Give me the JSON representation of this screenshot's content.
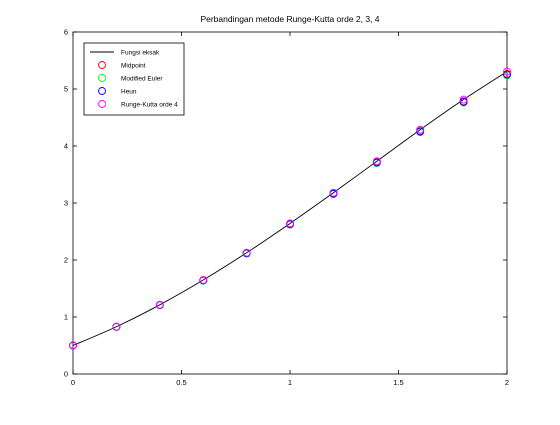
{
  "chart_data": {
    "type": "line",
    "title": "Perbandingan metode Runge-Kutta orde 2, 3, 4",
    "xlabel": "",
    "ylabel": "",
    "xlim": [
      0,
      2
    ],
    "ylim": [
      0,
      6
    ],
    "xticks": [
      0,
      0.5,
      1,
      1.5,
      2
    ],
    "xtick_labels": [
      "0",
      "0.5",
      "1",
      "1.5",
      "2"
    ],
    "yticks": [
      0,
      1,
      2,
      3,
      4,
      5,
      6
    ],
    "ytick_labels": [
      "0",
      "1",
      "2",
      "3",
      "4",
      "5",
      "6"
    ],
    "grid": false,
    "legend_position": "top-left",
    "exact": {
      "name": "Fungsi eksak",
      "color": "#000000",
      "x": [
        0,
        0.2,
        0.4,
        0.6,
        0.8,
        1.0,
        1.2,
        1.4,
        1.6,
        1.8,
        2.0
      ],
      "y": [
        0.5,
        0.829,
        1.214,
        1.649,
        2.127,
        2.641,
        3.179,
        3.732,
        4.285,
        4.815,
        5.306
      ]
    },
    "series": [
      {
        "name": "Midpoint",
        "color": "#ff0000",
        "marker": "circle",
        "x": [
          0,
          0.2,
          0.4,
          0.6,
          0.8,
          1.0,
          1.2,
          1.4,
          1.6,
          1.8,
          2.0
        ],
        "y": [
          0.5,
          0.828,
          1.211,
          1.644,
          2.121,
          2.633,
          3.169,
          3.718,
          4.262,
          4.784,
          5.264
        ]
      },
      {
        "name": "Modified Euler",
        "color": "#00ff00",
        "marker": "circle",
        "x": [
          0,
          0.2,
          0.4,
          0.6,
          0.8,
          1.0,
          1.2,
          1.4,
          1.6,
          1.8,
          2.0
        ],
        "y": [
          0.5,
          0.826,
          1.207,
          1.638,
          2.113,
          2.622,
          3.156,
          3.703,
          4.245,
          4.764,
          5.242
        ]
      },
      {
        "name": "Heun",
        "color": "#0000ff",
        "marker": "circle",
        "x": [
          0,
          0.2,
          0.4,
          0.6,
          0.8,
          1.0,
          1.2,
          1.4,
          1.6,
          1.8,
          2.0
        ],
        "y": [
          0.5,
          0.827,
          1.209,
          1.641,
          2.117,
          2.627,
          3.162,
          3.71,
          4.253,
          4.773,
          5.253
        ]
      },
      {
        "name": "Runge-Kutta orde 4",
        "color": "#ff00ff",
        "marker": "circle",
        "x": [
          0,
          0.2,
          0.4,
          0.6,
          0.8,
          1.0,
          1.2,
          1.4,
          1.6,
          1.8,
          2.0
        ],
        "y": [
          0.5,
          0.829,
          1.214,
          1.649,
          2.127,
          2.641,
          3.179,
          3.732,
          4.285,
          4.815,
          5.306
        ]
      }
    ]
  }
}
